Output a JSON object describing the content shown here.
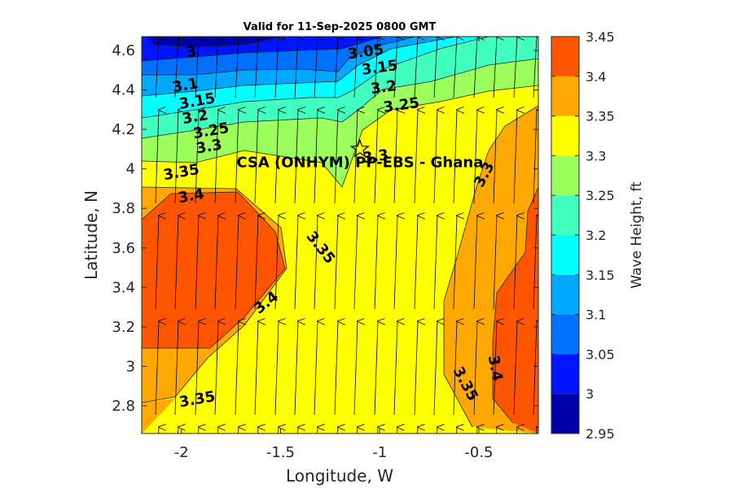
{
  "chart_data": {
    "type": "contour",
    "title": "Valid for 11-Sep-2025 0800 GMT",
    "xlabel": "Longitude, W",
    "ylabel": "Latitude, N",
    "xlim": [
      -2.2,
      -0.2
    ],
    "ylim": [
      2.66,
      4.67
    ],
    "x_ticks": [
      -2,
      -1.5,
      -1,
      -0.5
    ],
    "x_tick_labels": [
      "-2",
      "-1.5",
      "-1",
      "-0.5"
    ],
    "y_ticks": [
      2.8,
      3.0,
      3.2,
      3.4,
      3.6,
      3.8,
      4.0,
      4.2,
      4.4,
      4.6
    ],
    "y_tick_labels": [
      "2.8",
      "3",
      "3.2",
      "3.4",
      "3.6",
      "3.8",
      "4",
      "4.2",
      "4.4",
      "4.6"
    ],
    "colorbar": {
      "label": "Wave Height, ft",
      "levels": [
        2.95,
        3.0,
        3.05,
        3.1,
        3.15,
        3.2,
        3.25,
        3.3,
        3.35,
        3.4,
        3.45
      ],
      "tick_labels": [
        "2.95",
        "3",
        "3.05",
        "3.1",
        "3.15",
        "3.2",
        "3.25",
        "3.3",
        "3.35",
        "3.4",
        "3.45"
      ],
      "colors": [
        "#0000a8",
        "#0015ff",
        "#0070ff",
        "#00a8ff",
        "#00ffff",
        "#40ffbf",
        "#9bff5c",
        "#ffff00",
        "#ffa900",
        "#ff5500"
      ]
    },
    "grid": false,
    "legend": "none",
    "site": {
      "label": "CSA (ONHYM) PP-EBS  - Ghana",
      "lon": -1.1,
      "lat": 4.1,
      "marker": "star"
    },
    "wave_direction": "north (slightly northeast)",
    "contour_labels": [
      {
        "text": "3",
        "lon": -1.95,
        "lat": 4.59
      },
      {
        "text": "3.05",
        "lon": -1.07,
        "lat": 4.59
      },
      {
        "text": "3.1",
        "lon": -1.98,
        "lat": 4.42
      },
      {
        "text": "3.15",
        "lon": -1.92,
        "lat": 4.34
      },
      {
        "text": "3.15",
        "lon": -1.0,
        "lat": 4.51
      },
      {
        "text": "3.2",
        "lon": -1.93,
        "lat": 4.26
      },
      {
        "text": "3.2",
        "lon": -0.98,
        "lat": 4.41
      },
      {
        "text": "3.25",
        "lon": -1.85,
        "lat": 4.19
      },
      {
        "text": "3.25",
        "lon": -0.89,
        "lat": 4.32
      },
      {
        "text": "3.3",
        "lon": -1.86,
        "lat": 4.11
      },
      {
        "text": "3.3",
        "lon": -1.02,
        "lat": 4.06
      },
      {
        "text": "3.3",
        "lon": -0.47,
        "lat": 3.97
      },
      {
        "text": "3.35",
        "lon": -2.0,
        "lat": 3.98
      },
      {
        "text": "3.35",
        "lon": -1.3,
        "lat": 3.6
      },
      {
        "text": "3.35",
        "lon": -1.92,
        "lat": 2.83
      },
      {
        "text": "3.35",
        "lon": -0.57,
        "lat": 2.91
      },
      {
        "text": "3.4",
        "lon": -1.95,
        "lat": 3.86
      },
      {
        "text": "3.4",
        "lon": -1.57,
        "lat": 3.32
      },
      {
        "text": "3.4",
        "lon": -0.42,
        "lat": 2.99
      }
    ]
  }
}
